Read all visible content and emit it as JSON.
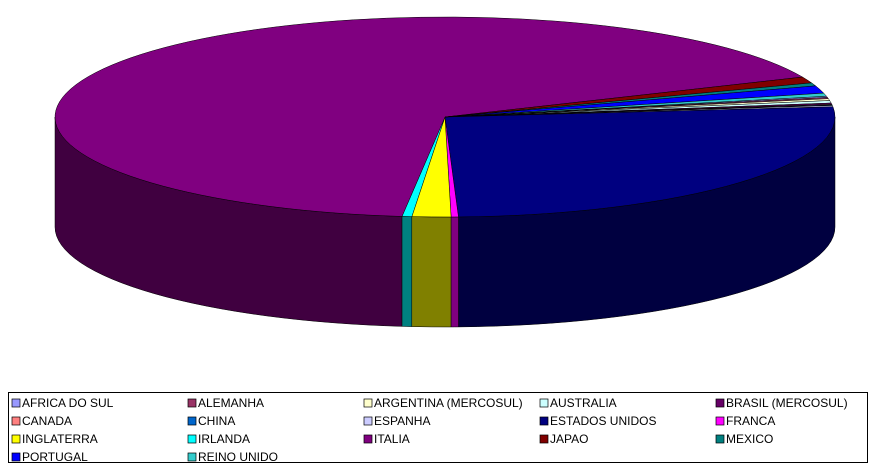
{
  "chart_data": {
    "type": "pie3d",
    "categories": [
      "AFRICA DO SUL",
      "ALEMANHA",
      "ARGENTINA (MERCOSUL)",
      "AUSTRALIA",
      "BRASIL (MERCOSUL)",
      "CANADA",
      "CHINA",
      "ESPANHA",
      "ESTADOS UNIDOS",
      "FRANCA",
      "INGLATERRA",
      "IRLANDA",
      "ITALIA",
      "JAPAO",
      "MEXICO",
      "PORTUGAL",
      "REINO UNIDO"
    ],
    "values": [
      0.2,
      0.2,
      0.3,
      0.4,
      0.2,
      0.1,
      0.1,
      0.2,
      26,
      0.3,
      1.6,
      0.4,
      66.5,
      1,
      0.5,
      1.2,
      0.5
    ],
    "colors": [
      "#9999ff",
      "#993366",
      "#ffffcc",
      "#ccffff",
      "#660066",
      "#ff8080",
      "#0066cc",
      "#ccccff",
      "#000080",
      "#ff00ff",
      "#ffff00",
      "#00ffff",
      "#800080",
      "#800000",
      "#008080",
      "#0000ff",
      "#33cccc"
    ],
    "legend": "bottom"
  }
}
